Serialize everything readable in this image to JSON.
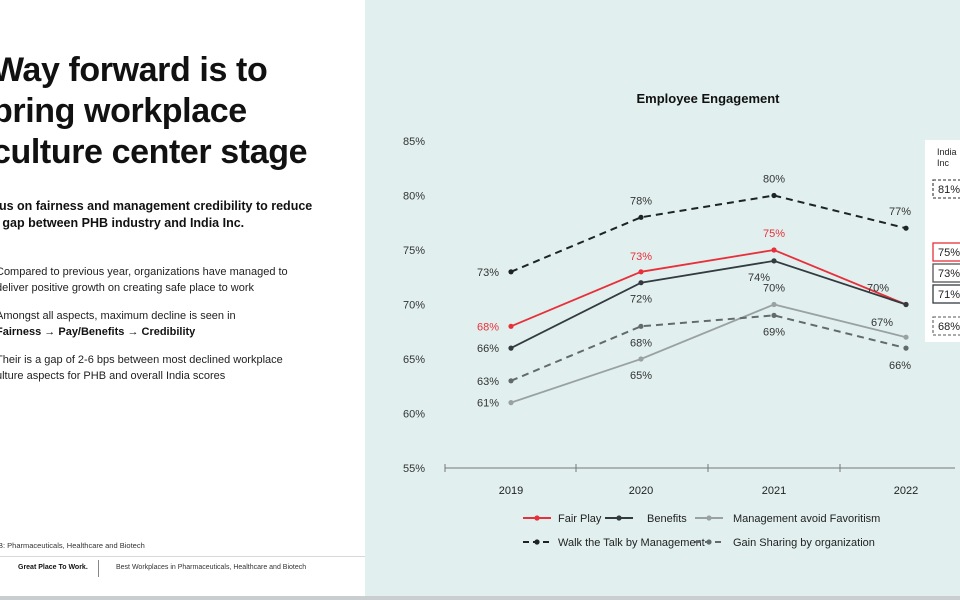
{
  "left": {
    "headline_lines": [
      "Way forward is to",
      "bring workplace",
      "culture center stage"
    ],
    "subhead": "cus on fairness and management credibility to reduce e gap between PHB industry and India Inc.",
    "subhead_lines": [
      "cus on fairness and management credibility to reduce",
      "e gap between PHB industry and India Inc."
    ],
    "bullets": [
      {
        "lines": [
          "Compared to previous year, organizations have managed to",
          "deliver positive growth on creating safe place to work"
        ]
      },
      {
        "lines": [
          "Amongst all aspects, maximum decline is seen in"
        ],
        "bold_line": "Fairness → Pay/Benefits → Credibility"
      },
      {
        "lines": [
          "Their is a gap of 2-6 bps between most declined workplace",
          "ulture aspects for PHB and overall India scores"
        ]
      }
    ],
    "footnote": "B: Pharmaceuticals, Healthcare and Biotech",
    "footer_brand": "Great Place To Work.",
    "footer_text": "Best Workplaces in Pharmaceuticals, Healthcare and Biotech"
  },
  "chart_data": {
    "type": "line",
    "title": "Employee Engagement",
    "xlabel": "",
    "ylabel": "",
    "categories": [
      "2019",
      "2020",
      "2021",
      "2022"
    ],
    "ylim": [
      55,
      85
    ],
    "yticks": [
      "55%",
      "60%",
      "65%",
      "70%",
      "75%",
      "80%",
      "85%"
    ],
    "grid": false,
    "legend_position": "bottom",
    "series": [
      {
        "name": "Fair Play",
        "values": [
          68,
          73,
          75,
          70
        ],
        "labels": [
          "68%",
          "73%",
          "75%",
          ""
        ],
        "color": "#e8303a",
        "style": "solid",
        "marker": "circle"
      },
      {
        "name": "Benefits",
        "values": [
          66,
          72,
          74,
          70
        ],
        "labels": [
          "66%",
          "72%",
          "74%",
          "70%"
        ],
        "color": "#333b40",
        "style": "solid",
        "marker": "circle"
      },
      {
        "name": "Management avoid Favoritism",
        "values": [
          61,
          65,
          70,
          67
        ],
        "labels": [
          "61%",
          "65%",
          "70%",
          "67%"
        ],
        "color": "#9aa1a4",
        "style": "solid",
        "marker": "circle"
      },
      {
        "name": "Walk the Talk by Management",
        "values": [
          73,
          78,
          80,
          77
        ],
        "labels": [
          "73%",
          "78%",
          "80%",
          "77%"
        ],
        "color": "#1d2326",
        "style": "dashed",
        "marker": "circle"
      },
      {
        "name": "Gain Sharing by organization",
        "values": [
          63,
          68,
          69,
          66
        ],
        "labels": [
          "63%",
          "68%",
          "69%",
          "66%"
        ],
        "color": "#636a6e",
        "style": "dashed",
        "marker": "circle"
      }
    ],
    "india_inc_panel": {
      "header": [
        "India",
        "Inc"
      ],
      "values": [
        {
          "text": "81%",
          "border": "#555555",
          "style": "dashed"
        },
        {
          "text": "75%",
          "border": "#e8303a",
          "style": "solid"
        },
        {
          "text": "73%",
          "border": "#555555",
          "style": "solid"
        },
        {
          "text": "71%",
          "border": "#333b40",
          "style": "solid"
        },
        {
          "text": "68%",
          "border": "#777777",
          "style": "dashed"
        }
      ]
    }
  }
}
